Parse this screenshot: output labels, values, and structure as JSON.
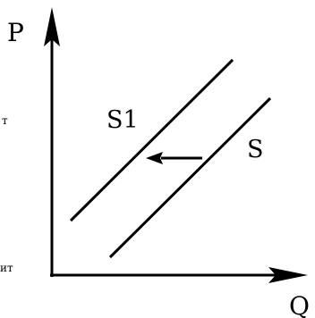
{
  "axes": {
    "y_label": "P",
    "x_label": "Q"
  },
  "curves": [
    {
      "name": "S1",
      "label": "S1"
    },
    {
      "name": "S",
      "label": "S"
    }
  ],
  "shift": {
    "direction": "left",
    "from": "S",
    "to": "S1"
  },
  "edge_fragments": {
    "upper": "т",
    "lower": "ит"
  },
  "colors": {
    "ink": "#000000",
    "background": "#ffffff"
  }
}
